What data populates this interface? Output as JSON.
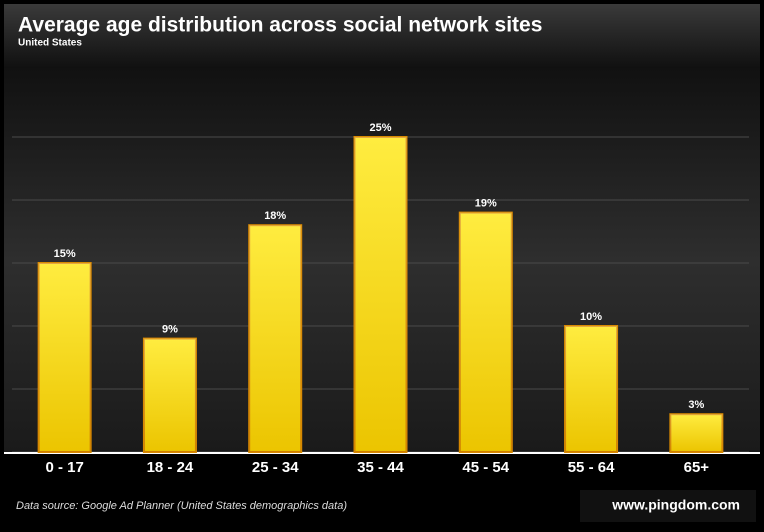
{
  "chart_data": {
    "type": "bar",
    "title": "Average age distribution across social network sites",
    "subtitle": "United States",
    "categories": [
      "0 - 17",
      "18 - 24",
      "25 - 34",
      "35 - 44",
      "45 - 54",
      "55 - 64",
      "65+"
    ],
    "values": [
      15,
      9,
      18,
      25,
      19,
      10,
      3
    ],
    "value_labels": [
      "15%",
      "9%",
      "18%",
      "25%",
      "19%",
      "10%",
      "3%"
    ],
    "color": "#ffe600",
    "ylim": [
      0,
      30
    ],
    "yticks": [
      0,
      5,
      10,
      15,
      20,
      25
    ],
    "grid": true,
    "source": "Data source: Google Ad Planner (United States demographics data)",
    "credit": "www.pingdom.com"
  }
}
